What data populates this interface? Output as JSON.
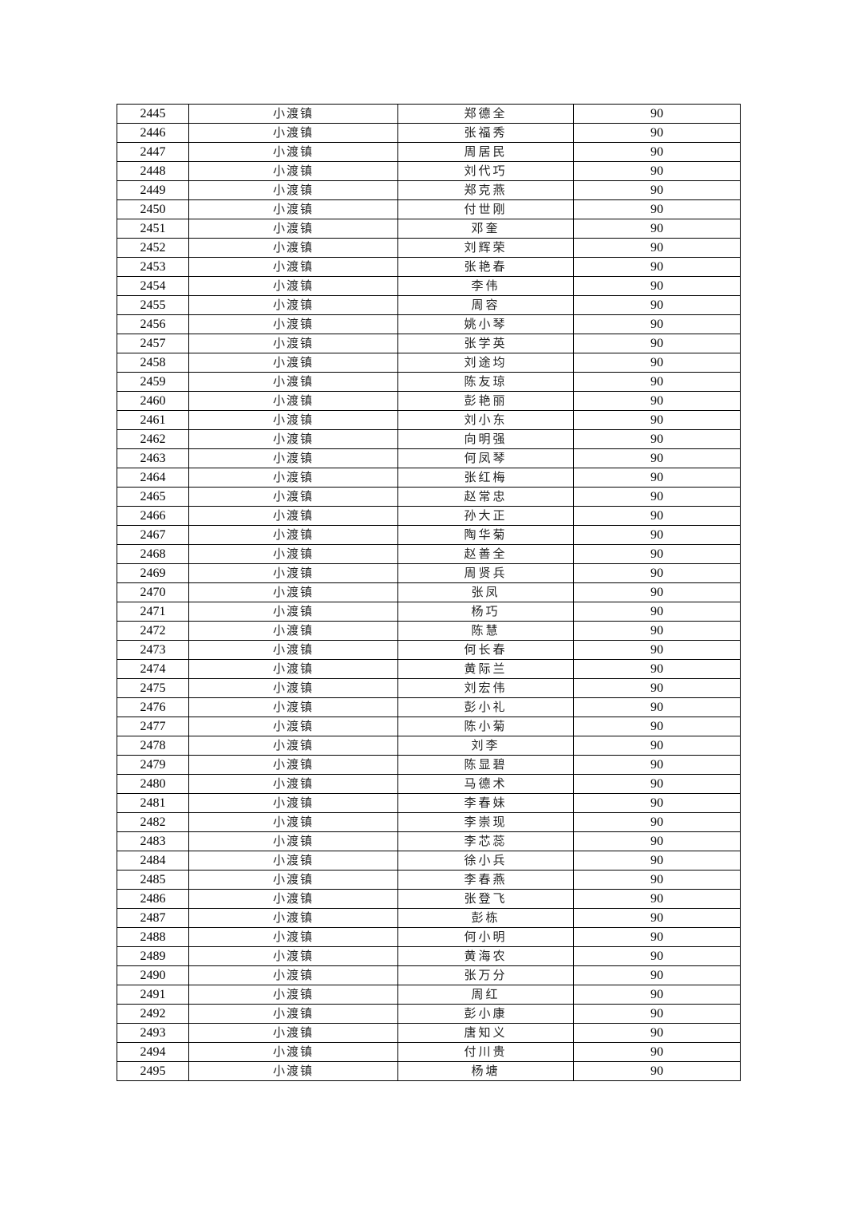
{
  "table": {
    "rows": [
      [
        "2445",
        "小渡镇",
        "郑德全",
        "90"
      ],
      [
        "2446",
        "小渡镇",
        "张福秀",
        "90"
      ],
      [
        "2447",
        "小渡镇",
        "周居民",
        "90"
      ],
      [
        "2448",
        "小渡镇",
        "刘代巧",
        "90"
      ],
      [
        "2449",
        "小渡镇",
        "郑克燕",
        "90"
      ],
      [
        "2450",
        "小渡镇",
        "付世刚",
        "90"
      ],
      [
        "2451",
        "小渡镇",
        "邓奎",
        "90"
      ],
      [
        "2452",
        "小渡镇",
        "刘辉荣",
        "90"
      ],
      [
        "2453",
        "小渡镇",
        "张艳春",
        "90"
      ],
      [
        "2454",
        "小渡镇",
        "李伟",
        "90"
      ],
      [
        "2455",
        "小渡镇",
        "周容",
        "90"
      ],
      [
        "2456",
        "小渡镇",
        "姚小琴",
        "90"
      ],
      [
        "2457",
        "小渡镇",
        "张学英",
        "90"
      ],
      [
        "2458",
        "小渡镇",
        "刘途均",
        "90"
      ],
      [
        "2459",
        "小渡镇",
        "陈友琼",
        "90"
      ],
      [
        "2460",
        "小渡镇",
        "彭艳丽",
        "90"
      ],
      [
        "2461",
        "小渡镇",
        "刘小东",
        "90"
      ],
      [
        "2462",
        "小渡镇",
        "向明强",
        "90"
      ],
      [
        "2463",
        "小渡镇",
        "何凤琴",
        "90"
      ],
      [
        "2464",
        "小渡镇",
        "张红梅",
        "90"
      ],
      [
        "2465",
        "小渡镇",
        "赵常忠",
        "90"
      ],
      [
        "2466",
        "小渡镇",
        "孙大正",
        "90"
      ],
      [
        "2467",
        "小渡镇",
        "陶华菊",
        "90"
      ],
      [
        "2468",
        "小渡镇",
        "赵善全",
        "90"
      ],
      [
        "2469",
        "小渡镇",
        "周贤兵",
        "90"
      ],
      [
        "2470",
        "小渡镇",
        "张凤",
        "90"
      ],
      [
        "2471",
        "小渡镇",
        "杨巧",
        "90"
      ],
      [
        "2472",
        "小渡镇",
        "陈慧",
        "90"
      ],
      [
        "2473",
        "小渡镇",
        "何长春",
        "90"
      ],
      [
        "2474",
        "小渡镇",
        "黄际兰",
        "90"
      ],
      [
        "2475",
        "小渡镇",
        "刘宏伟",
        "90"
      ],
      [
        "2476",
        "小渡镇",
        "彭小礼",
        "90"
      ],
      [
        "2477",
        "小渡镇",
        "陈小菊",
        "90"
      ],
      [
        "2478",
        "小渡镇",
        "刘李",
        "90"
      ],
      [
        "2479",
        "小渡镇",
        "陈显碧",
        "90"
      ],
      [
        "2480",
        "小渡镇",
        "马德术",
        "90"
      ],
      [
        "2481",
        "小渡镇",
        "李春妹",
        "90"
      ],
      [
        "2482",
        "小渡镇",
        "李崇现",
        "90"
      ],
      [
        "2483",
        "小渡镇",
        "李芯蕊",
        "90"
      ],
      [
        "2484",
        "小渡镇",
        "徐小兵",
        "90"
      ],
      [
        "2485",
        "小渡镇",
        "李春燕",
        "90"
      ],
      [
        "2486",
        "小渡镇",
        "张登飞",
        "90"
      ],
      [
        "2487",
        "小渡镇",
        "彭栋",
        "90"
      ],
      [
        "2488",
        "小渡镇",
        "何小明",
        "90"
      ],
      [
        "2489",
        "小渡镇",
        "黄海农",
        "90"
      ],
      [
        "2490",
        "小渡镇",
        "张万分",
        "90"
      ],
      [
        "2491",
        "小渡镇",
        "周红",
        "90"
      ],
      [
        "2492",
        "小渡镇",
        "彭小康",
        "90"
      ],
      [
        "2493",
        "小渡镇",
        "唐知义",
        "90"
      ],
      [
        "2494",
        "小渡镇",
        "付川贵",
        "90"
      ],
      [
        "2495",
        "小渡镇",
        "杨塘",
        "90"
      ]
    ]
  }
}
